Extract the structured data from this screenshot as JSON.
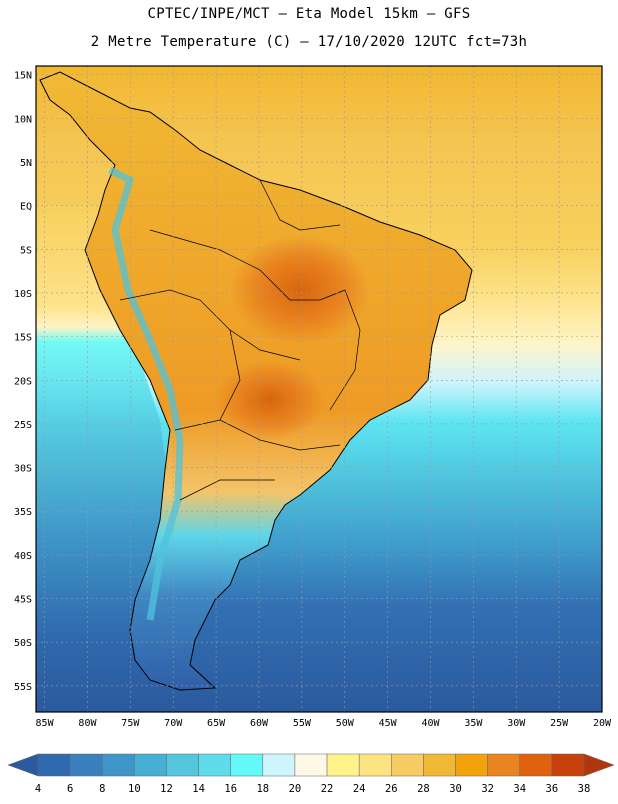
{
  "header": {
    "line1": "CPTEC/INPE/MCT –  Eta Model 15km – GFS",
    "line2": "2 Metre Temperature (C) – 17/10/2020 12UTC fct=73h"
  },
  "map": {
    "lon_range": [
      -86,
      -20
    ],
    "lat_range": [
      -58,
      16
    ],
    "lat_labels": [
      "15N",
      "10N",
      "5N",
      "EQ",
      "5S",
      "10S",
      "15S",
      "20S",
      "25S",
      "30S",
      "35S",
      "40S",
      "45S",
      "50S",
      "55S"
    ],
    "lon_labels": [
      "85W",
      "80W",
      "75W",
      "70W",
      "65W",
      "60W",
      "55W",
      "50W",
      "45W",
      "40W",
      "35W",
      "30W",
      "25W",
      "20W"
    ]
  },
  "colorbar": {
    "labels": [
      "4",
      "6",
      "8",
      "10",
      "12",
      "14",
      "16",
      "18",
      "20",
      "22",
      "24",
      "26",
      "28",
      "30",
      "32",
      "34",
      "36",
      "38"
    ],
    "colors": [
      "#2b5a9e",
      "#2f6aae",
      "#3a80bf",
      "#3e96c8",
      "#47aed4",
      "#54c6de",
      "#5fdcec",
      "#64fafa",
      "#cef4fc",
      "#fff8e6",
      "#fff48c",
      "#fde483",
      "#f7cc63",
      "#f0b935",
      "#f2a30c",
      "#e9841f",
      "#e0610e",
      "#c8400c",
      "#b2360d"
    ]
  }
}
